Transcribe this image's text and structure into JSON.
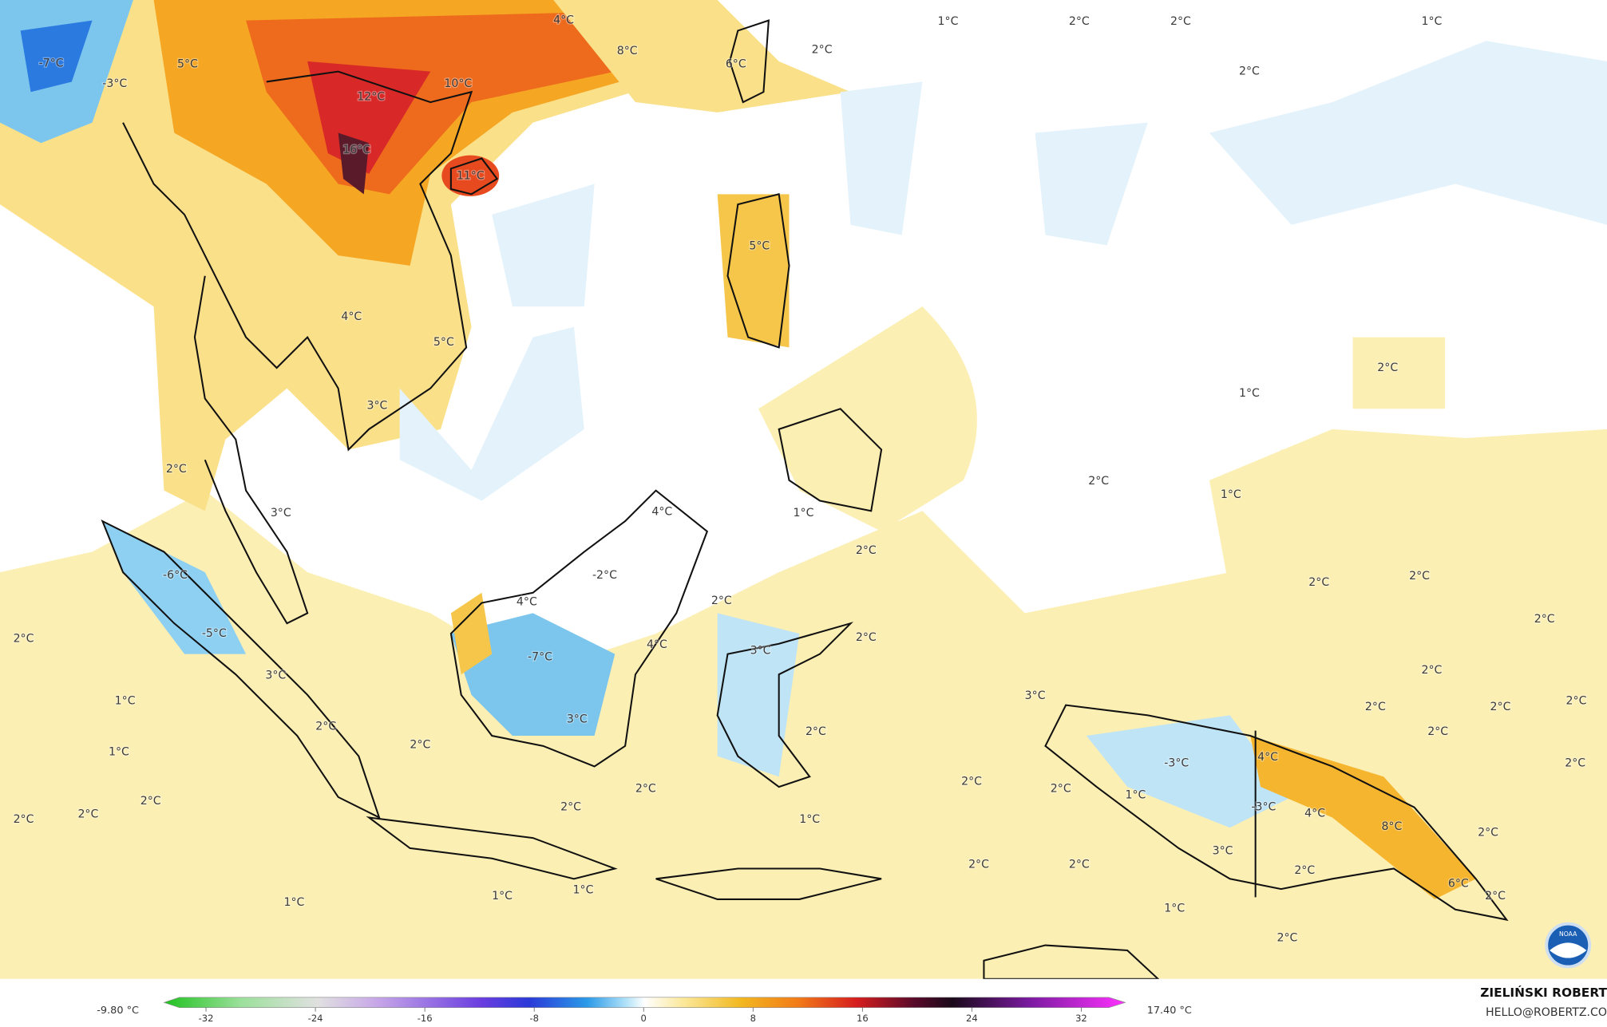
{
  "map": {
    "labels": [
      "-7°C",
      "-3°C",
      "5°C",
      "4°C",
      "8°C",
      "10°C",
      "12°C",
      "16°C",
      "11°C",
      "6°C",
      "2°C",
      "1°C",
      "2°C",
      "2°C",
      "1°C",
      "2°C",
      "5°C",
      "4°C",
      "5°C",
      "3°C",
      "2°C",
      "1°C",
      "2°C",
      "3°C",
      "4°C",
      "1°C",
      "1°C",
      "2°C",
      "-6°C",
      "-2°C",
      "4°C",
      "2°C",
      "2°C",
      "2°C",
      "2°C",
      "2°C",
      "2°C",
      "-5°C",
      "3°C",
      "1°C",
      "2°C",
      "2°C",
      "-7°C",
      "4°C",
      "3°C",
      "2°C",
      "3°C",
      "2°C",
      "2°C",
      "3°C",
      "2°C",
      "2°C",
      "2°C",
      "2°C",
      "1°C",
      "2°C",
      "2°C",
      "2°C",
      "2°C",
      "2°C",
      "2°C",
      "2°C",
      "1°C",
      "-3°C",
      "4°C",
      "2°C",
      "-3°C",
      "4°C",
      "8°C",
      "2°C",
      "1°C",
      "3°C",
      "2°C",
      "2°C",
      "2°C",
      "6°C",
      "2°C",
      "1°C",
      "1°C",
      "1°C",
      "1°C",
      "2°C"
    ]
  },
  "colorbar": {
    "min_label": "-9.80 °C",
    "max_label": "17.40 °C",
    "ticks": [
      -32,
      -24,
      -16,
      -8,
      0,
      8,
      16,
      24,
      32
    ]
  },
  "credit": {
    "author": "ZIELIŃSKI ROBERT",
    "email": "HELLO@ROBERTZ.CO"
  }
}
